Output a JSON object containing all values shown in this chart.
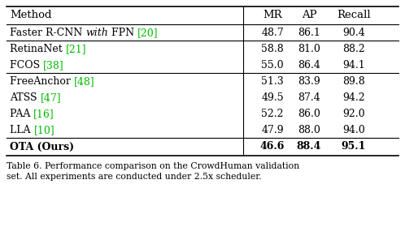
{
  "title_line1": "Table 6. Performance comparison on the CrowdHuman validation",
  "title_line2": "set. All experiments are conducted under 2.5x scheduler.",
  "rows": [
    {
      "parts": [
        {
          "text": "Faster R-CNN ",
          "style": "normal"
        },
        {
          "text": "with",
          "style": "italic"
        },
        {
          "text": " FPN ",
          "style": "normal"
        },
        {
          "text": "[20]",
          "style": "ref"
        }
      ],
      "mr": "48.7",
      "ap": "86.1",
      "recall": "90.4",
      "bold": false,
      "group_start": true
    },
    {
      "parts": [
        {
          "text": "RetinaNet ",
          "style": "normal"
        },
        {
          "text": "[21]",
          "style": "ref"
        }
      ],
      "mr": "58.8",
      "ap": "81.0",
      "recall": "88.2",
      "bold": false,
      "group_start": true
    },
    {
      "parts": [
        {
          "text": "FCOS ",
          "style": "normal"
        },
        {
          "text": "[38]",
          "style": "ref"
        }
      ],
      "mr": "55.0",
      "ap": "86.4",
      "recall": "94.1",
      "bold": false,
      "group_start": false
    },
    {
      "parts": [
        {
          "text": "FreeAnchor ",
          "style": "normal"
        },
        {
          "text": "[48]",
          "style": "ref"
        }
      ],
      "mr": "51.3",
      "ap": "83.9",
      "recall": "89.8",
      "bold": false,
      "group_start": true
    },
    {
      "parts": [
        {
          "text": "ATSS ",
          "style": "normal"
        },
        {
          "text": "[47]",
          "style": "ref"
        }
      ],
      "mr": "49.5",
      "ap": "87.4",
      "recall": "94.2",
      "bold": false,
      "group_start": false
    },
    {
      "parts": [
        {
          "text": "PAA ",
          "style": "normal"
        },
        {
          "text": "[16]",
          "style": "ref"
        }
      ],
      "mr": "52.2",
      "ap": "86.0",
      "recall": "92.0",
      "bold": false,
      "group_start": false
    },
    {
      "parts": [
        {
          "text": "LLA ",
          "style": "normal"
        },
        {
          "text": "[10]",
          "style": "ref"
        }
      ],
      "mr": "47.9",
      "ap": "88.0",
      "recall": "94.0",
      "bold": false,
      "group_start": false
    },
    {
      "parts": [
        {
          "text": "OTA (Ours)",
          "style": "normal"
        }
      ],
      "mr": "46.6",
      "ap": "88.4",
      "recall": "95.1",
      "bold": true,
      "group_start": true
    }
  ],
  "ref_color": "#00bb00",
  "text_color": "#000000",
  "bg_color": "#ffffff"
}
